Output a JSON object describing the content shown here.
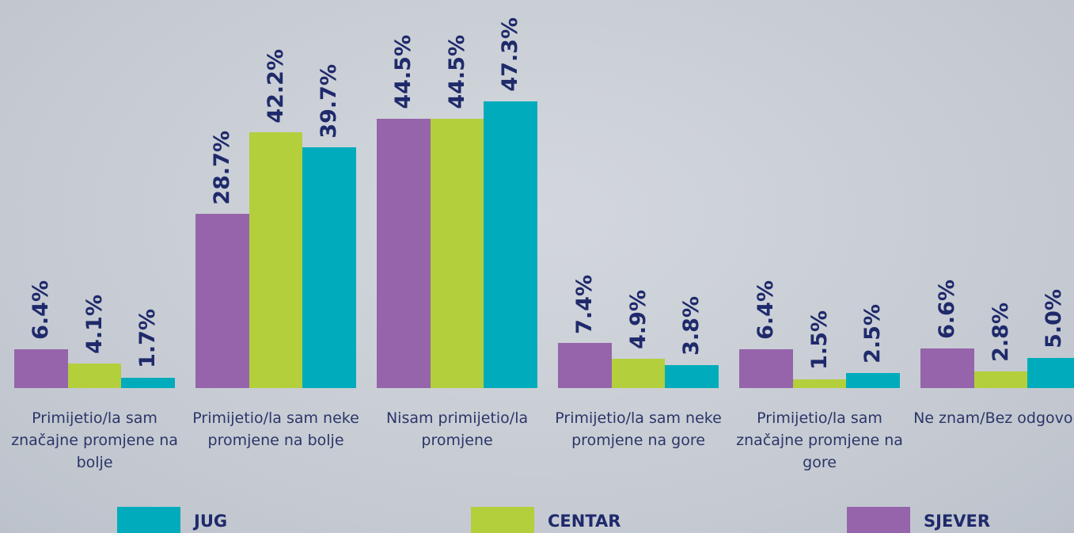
{
  "chart_data": {
    "type": "bar",
    "categories": [
      "Primijetio/la sam značajne promjene na bolje",
      "Primijetio/la sam neke promjene na bolje",
      "Nisam primijetio/la promjene",
      "Primijetio/la sam neke promjene na gore",
      "Primijetio/la sam značajne promjene na gore",
      "Ne znam/Bez odgovora"
    ],
    "series": [
      {
        "name": "SJEVER",
        "color": "#9564aa",
        "values": [
          6.4,
          28.7,
          44.5,
          7.4,
          6.4,
          6.6
        ],
        "value_labels": [
          "6.4%",
          "28.7%",
          "44.5%",
          "7.4%",
          "6.4%",
          "6.6%"
        ]
      },
      {
        "name": "CENTAR",
        "color": "#b3cf3c",
        "values": [
          4.1,
          42.2,
          44.5,
          4.9,
          1.5,
          2.8
        ],
        "value_labels": [
          "4.1%",
          "42.2%",
          "44.5%",
          "4.9%",
          "1.5%",
          "2.8%"
        ]
      },
      {
        "name": "JUG",
        "color": "#00acbc",
        "values": [
          1.7,
          39.7,
          47.3,
          3.8,
          2.5,
          5.0
        ],
        "value_labels": [
          "1.7%",
          "39.7%",
          "47.3%",
          "3.8%",
          "2.5%",
          "5.0%"
        ]
      }
    ]
  }
}
